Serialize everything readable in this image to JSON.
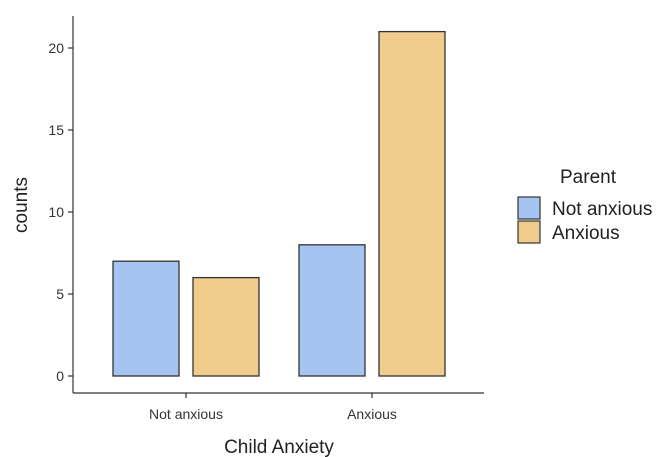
{
  "chart_data": {
    "type": "bar",
    "categories": [
      "Not anxious",
      "Anxious"
    ],
    "series": [
      {
        "name": "Not anxious",
        "values": [
          7,
          8
        ],
        "color": "#a6c4f2"
      },
      {
        "name": "Anxious",
        "values": [
          6,
          21
        ],
        "color": "#f0cc8c"
      }
    ],
    "xlabel": "Child Anxiety",
    "ylabel": "counts",
    "ylim": [
      0,
      22
    ],
    "yticks": [
      0,
      5,
      10,
      15,
      20
    ],
    "grid": false,
    "legend": {
      "title": "Parent",
      "position": "right"
    },
    "bar_stroke": "#333333"
  }
}
